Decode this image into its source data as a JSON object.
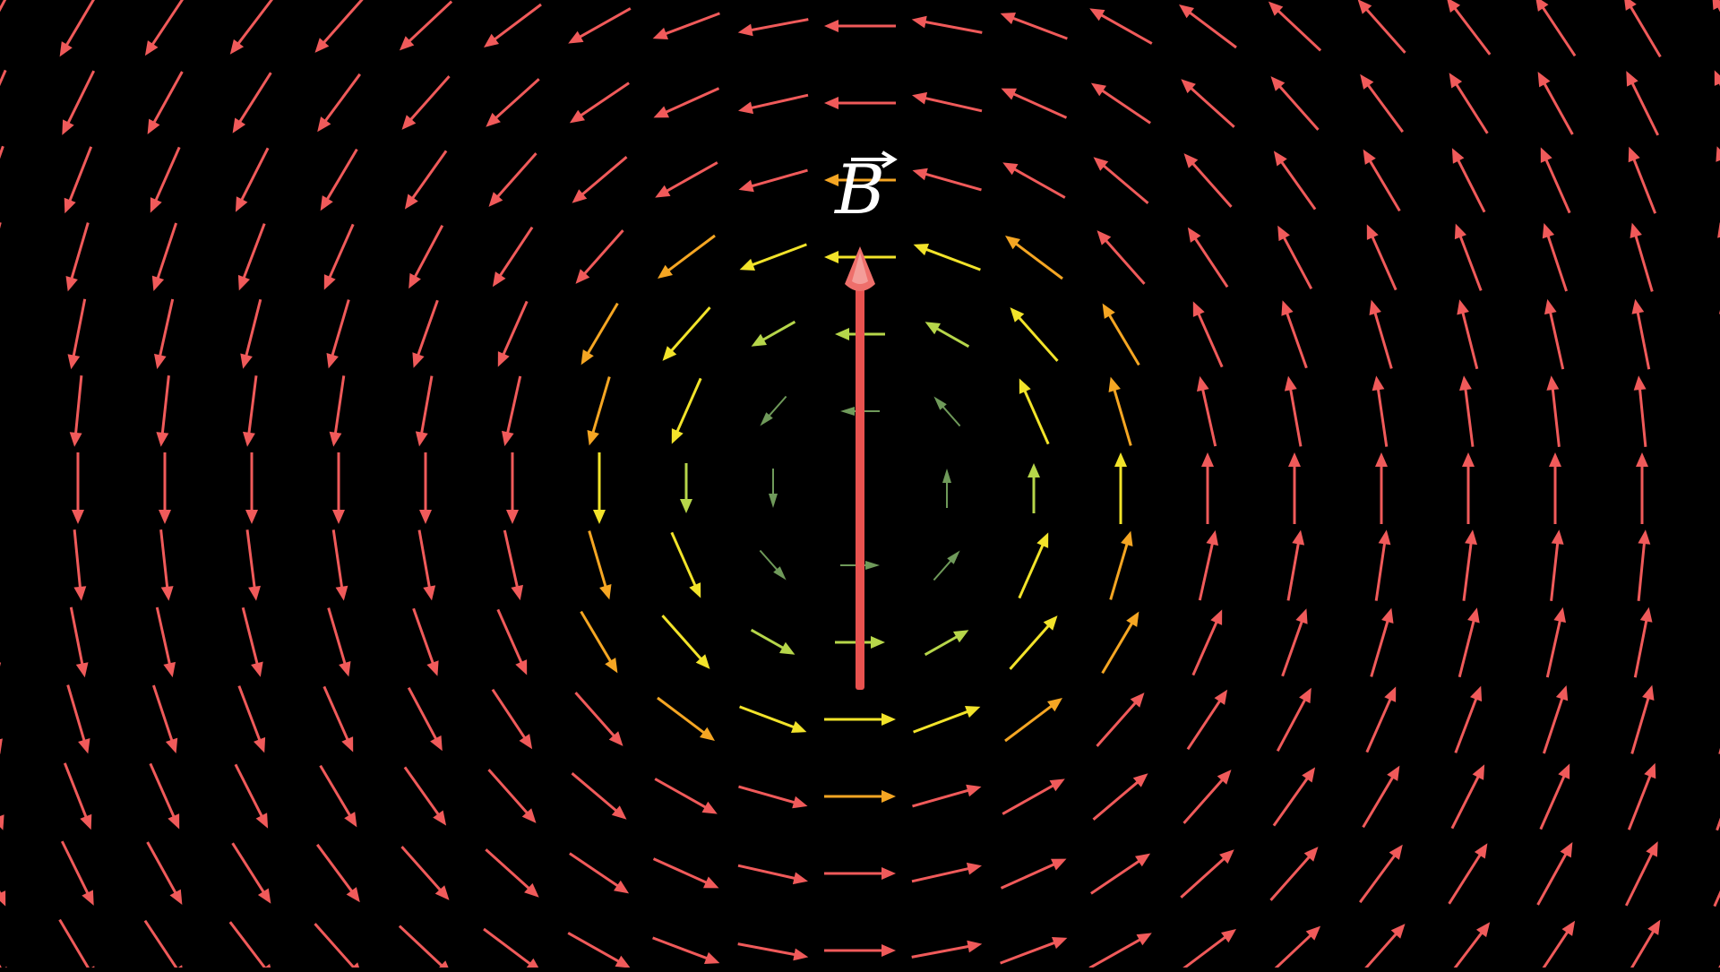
{
  "diagram": {
    "title_label": "B",
    "label_has_vector_arrow": true,
    "description_type": "vector field circulating around a vertical vector",
    "field_rotation": "counterclockwise",
    "colors": {
      "background": "#000000",
      "main_vector": "#e8524f",
      "main_vector_tip": "#f3a3a0",
      "label": "#ffffff",
      "field_far": "#f05a5a",
      "field_mid": "#f5a623",
      "field_near": "#f2e32a",
      "field_core": "#b6d64a",
      "field_center": "#6f9a5a"
    }
  }
}
